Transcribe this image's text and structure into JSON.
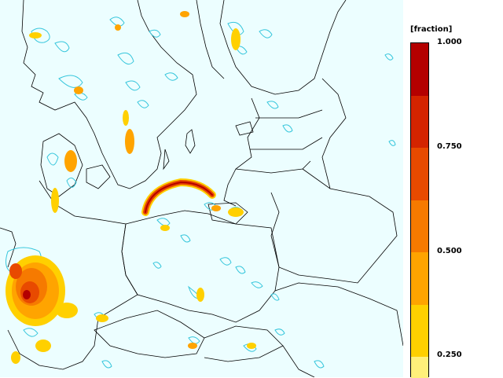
{
  "legend": {
    "unit": "[fraction]",
    "tick_labels": [
      "1.000",
      "0.750",
      "0.500",
      "0.250"
    ],
    "tick_values": [
      1.0,
      0.75,
      0.5,
      0.25
    ],
    "color_scale": [
      "#b40000",
      "#d42400",
      "#e84a00",
      "#f67a00",
      "#ffa400",
      "#ffd000",
      "#fff07a"
    ]
  },
  "map": {
    "land_color": "#ecfeff",
    "coast_color": "#000000",
    "contour_color": "#36c6dc",
    "highlight_colors": [
      "#f59b00",
      "#ff6a00",
      "#e03000",
      "#b40000"
    ]
  }
}
